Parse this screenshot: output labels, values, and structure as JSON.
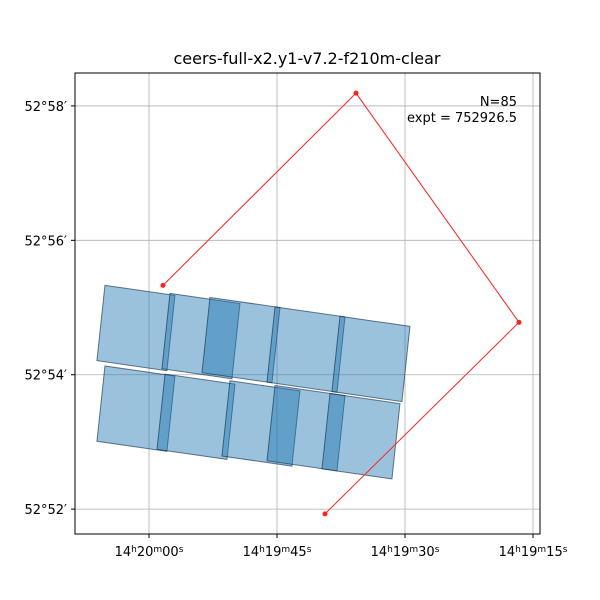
{
  "chart_data": {
    "type": "footprint",
    "title": "ceers-full-x2.y1-v7.2-f210m-clear",
    "annotations": [
      "N=85",
      "expt = 752926.5"
    ],
    "xlim": [
      68.67,
      14.18
    ],
    "ylim": [
      51.63,
      58.49
    ],
    "xticks": [
      {
        "value": 60,
        "label": "14h20m00s"
      },
      {
        "value": 45,
        "label": "14h19m45s"
      },
      {
        "value": 30,
        "label": "14h19m30s"
      },
      {
        "value": 15,
        "label": "14h19m15s"
      }
    ],
    "yticks": [
      {
        "value": 52,
        "label": "52°52′"
      },
      {
        "value": 54,
        "label": "52°54′"
      },
      {
        "value": 56,
        "label": "52°56′"
      },
      {
        "value": 58,
        "label": "52°58′"
      }
    ],
    "grid": true,
    "outline": {
      "color": "#ff2020",
      "x": [
        58.36,
        35.74,
        16.64,
        39.37
      ],
      "y": [
        55.33,
        58.19,
        54.78,
        51.93
      ]
    },
    "footprint_color": "#1f77b4",
    "footprints": [
      {
        "x": [
          65.16,
          56.96,
          57.9,
          66.1
        ],
        "y": [
          55.33,
          55.18,
          54.06,
          54.21
        ]
      },
      {
        "x": [
          57.54,
          49.34,
          50.28,
          58.48
        ],
        "y": [
          55.21,
          55.06,
          53.94,
          54.09
        ]
      },
      {
        "x": [
          52.85,
          44.65,
          45.59,
          53.79
        ],
        "y": [
          55.15,
          55.0,
          53.88,
          54.03
        ]
      },
      {
        "x": [
          45.23,
          37.03,
          37.97,
          46.17
        ],
        "y": [
          55.01,
          54.86,
          53.74,
          53.89
        ]
      },
      {
        "x": [
          37.62,
          29.42,
          30.36,
          38.56
        ],
        "y": [
          54.87,
          54.72,
          53.6,
          53.75
        ]
      },
      {
        "x": [
          65.16,
          56.96,
          57.9,
          66.1
        ],
        "y": [
          54.13,
          53.98,
          52.86,
          53.01
        ]
      },
      {
        "x": [
          58.12,
          49.92,
          50.86,
          59.06
        ],
        "y": [
          54.01,
          53.86,
          52.74,
          52.89
        ]
      },
      {
        "x": [
          50.51,
          42.31,
          43.25,
          51.45
        ],
        "y": [
          53.91,
          53.76,
          52.64,
          52.79
        ]
      },
      {
        "x": [
          45.23,
          37.03,
          37.97,
          46.17
        ],
        "y": [
          53.84,
          53.69,
          52.57,
          52.72
        ]
      },
      {
        "x": [
          38.79,
          30.59,
          31.53,
          39.73
        ],
        "y": [
          53.72,
          53.57,
          52.45,
          52.6
        ]
      }
    ]
  }
}
